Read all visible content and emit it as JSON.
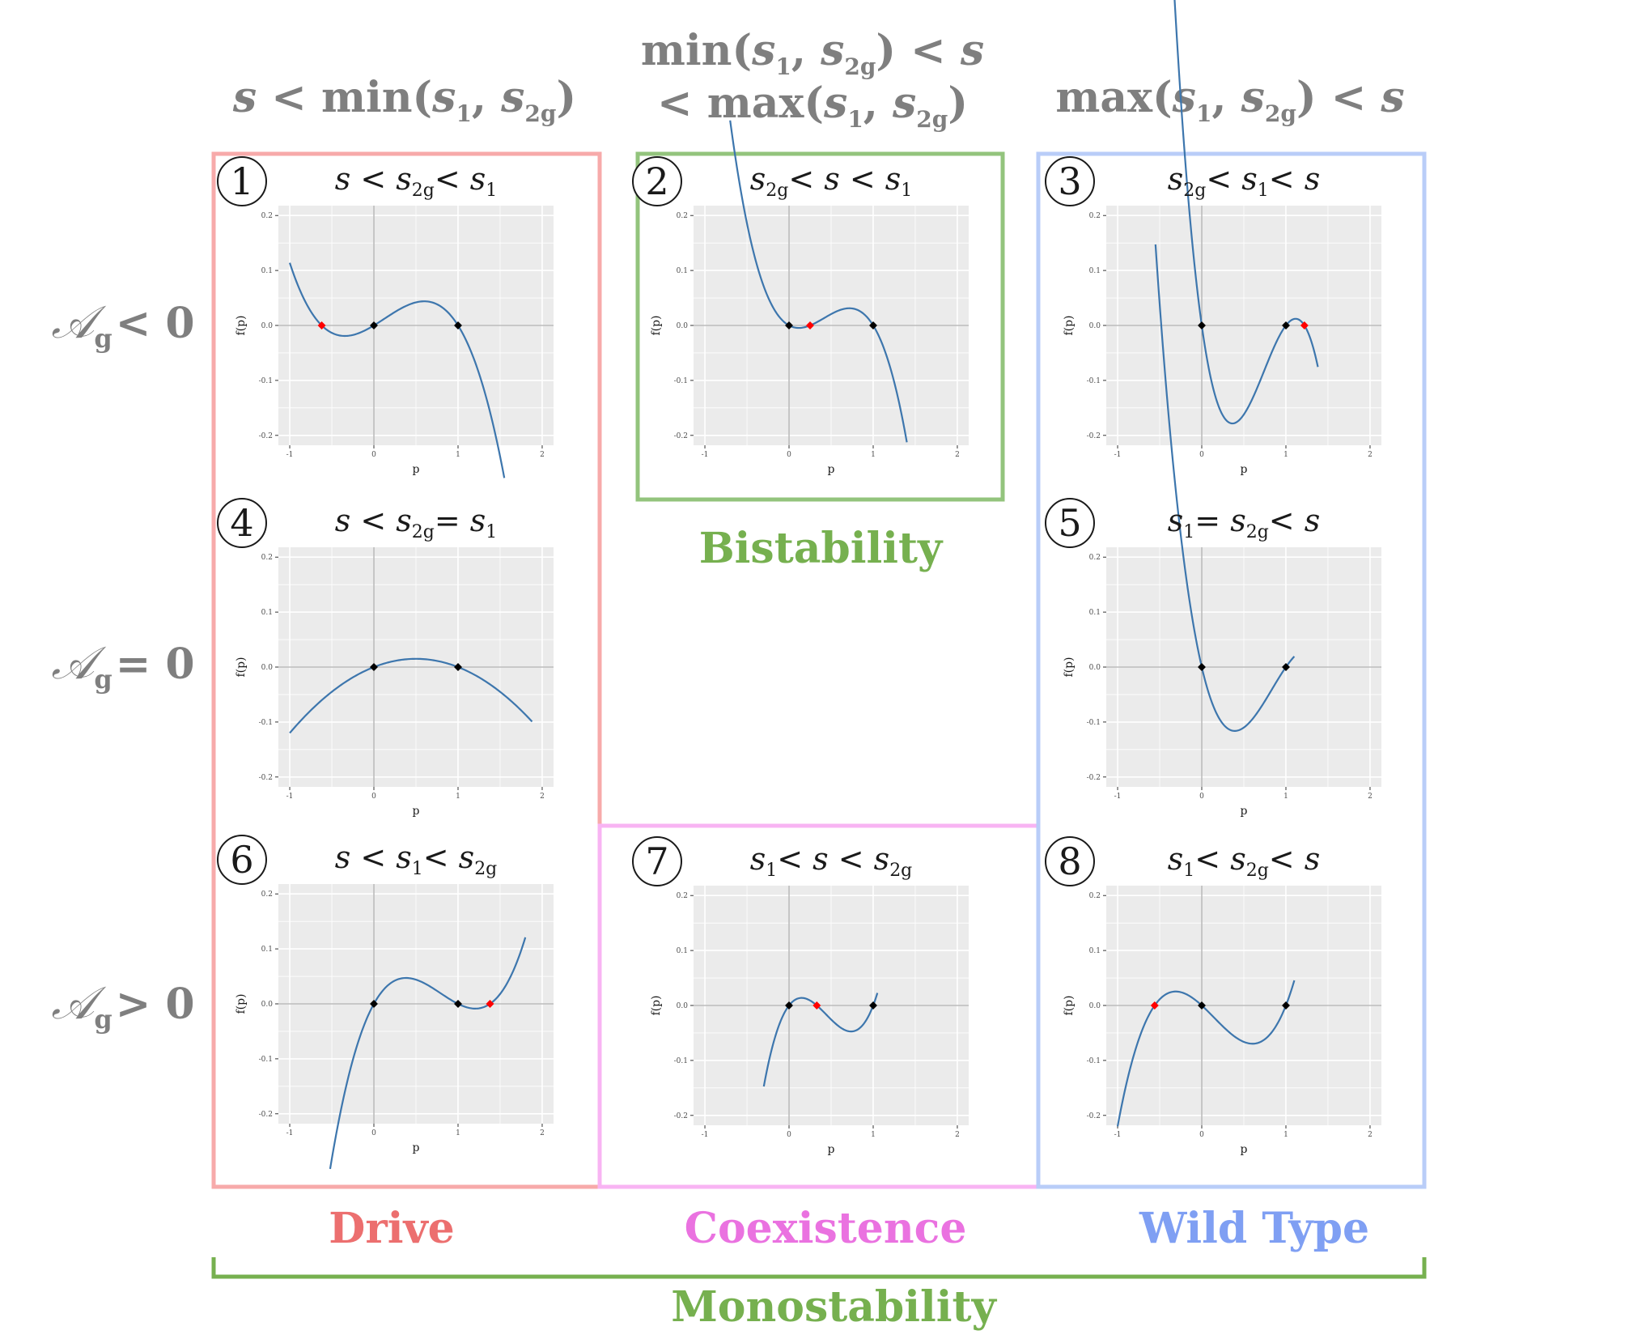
{
  "column_headers": [
    {
      "id": "col1",
      "lines": [
        [
          "s",
          " < min(",
          "s",
          "1",
          ", ",
          "s",
          "2g",
          ")"
        ]
      ]
    },
    {
      "id": "col2",
      "lines": [
        [
          "min(",
          "s",
          "1",
          ", ",
          "s",
          "2g",
          ") < ",
          "s",
          ""
        ],
        [
          "< max(",
          "s",
          "1",
          ", ",
          "s",
          "2g",
          ")"
        ]
      ]
    },
    {
      "id": "col3",
      "lines": [
        [
          "max(",
          "s",
          "1",
          ", ",
          "s",
          "2g",
          ") < ",
          "s",
          ""
        ]
      ]
    }
  ],
  "row_headers": [
    {
      "symbol": "𝒜",
      "sub": "g",
      "rel": "< 0"
    },
    {
      "symbol": "𝒜",
      "sub": "g",
      "rel": "= 0"
    },
    {
      "symbol": "𝒜",
      "sub": "g",
      "rel": "> 0"
    }
  ],
  "region_labels": {
    "bistability": "Bistability",
    "drive": "Drive",
    "coexistence": "Coexistence",
    "wild_type": "Wild Type",
    "monostability": "Monostability"
  },
  "colors": {
    "drive": "#f7aaaa",
    "drive_text": "#ec6f6f",
    "bistability": "#93c47d",
    "bistability_text": "#76b04f",
    "coexistence": "#f8b4f3",
    "coexistence_text": "#ea72e0",
    "wild_type": "#b9cdf8",
    "wild_type_text": "#7f9ff3",
    "monostability": "#76b04f",
    "curve": "#3d76ad",
    "stable_point": "#000000",
    "unstable_point": "#ff0000",
    "plot_bg": "#ebebeb"
  },
  "axis": {
    "x_ticks": [
      "-1",
      "0",
      "1",
      "2"
    ],
    "y_ticks": [
      "0.2",
      "0.1",
      "0.0",
      "-0.1",
      "-0.2"
    ],
    "xlabel": "p",
    "ylabel": "f(p)"
  },
  "chart_data": [
    {
      "type": "line",
      "panel": "1",
      "title": "s < s2g < s1",
      "xlim": [
        -1,
        2
      ],
      "ylim": [
        -0.2,
        0.2
      ],
      "curve": {
        "x0": -1,
        "x1": 1.55,
        "form": "cubic",
        "roots": [
          -0.62,
          0,
          1
        ],
        "k": -0.15
      },
      "points": [
        {
          "x": -0.62,
          "y": 0,
          "stable": false
        },
        {
          "x": 0,
          "y": 0,
          "stable": true
        },
        {
          "x": 1,
          "y": 0,
          "stable": true
        }
      ]
    },
    {
      "type": "line",
      "panel": "2",
      "title": "s2g < s < s1",
      "xlim": [
        -1,
        2
      ],
      "ylim": [
        -0.2,
        0.2
      ],
      "curve": {
        "x0": -0.7,
        "x1": 1.4,
        "form": "cubic",
        "roots": [
          0,
          0.25,
          1
        ],
        "k": -0.33
      },
      "points": [
        {
          "x": 0,
          "y": 0,
          "stable": true
        },
        {
          "x": 0.25,
          "y": 0,
          "stable": false
        },
        {
          "x": 1,
          "y": 0,
          "stable": true
        }
      ]
    },
    {
      "type": "line",
      "panel": "3",
      "title": "s2g < s1 < s",
      "xlim": [
        -1,
        2
      ],
      "ylim": [
        -0.2,
        0.2
      ],
      "curve": {
        "x0": -0.35,
        "x1": 1.38,
        "form": "cubic",
        "roots": [
          0,
          1,
          1.22
        ],
        "k": -0.9
      },
      "points": [
        {
          "x": 0,
          "y": 0,
          "stable": true
        },
        {
          "x": 1,
          "y": 0,
          "stable": true
        },
        {
          "x": 1.22,
          "y": 0,
          "stable": false
        }
      ]
    },
    {
      "type": "line",
      "panel": "4",
      "title": "s < s2g = s1",
      "xlim": [
        -1,
        2
      ],
      "ylim": [
        -0.2,
        0.2
      ],
      "curve": {
        "x0": -1,
        "x1": 1.88,
        "form": "quadratic",
        "roots": [
          0,
          1
        ],
        "k": -0.06
      },
      "points": [
        {
          "x": 0,
          "y": 0,
          "stable": true
        },
        {
          "x": 1,
          "y": 0,
          "stable": true
        }
      ]
    },
    {
      "type": "line",
      "panel": "5",
      "title": "s1 = s2g < s",
      "xlim": [
        -1,
        2
      ],
      "ylim": [
        -0.2,
        0.2
      ],
      "curve": {
        "x0": -0.55,
        "x1": 1.1,
        "form": "cubic",
        "roots": [
          0,
          1,
          1.5
        ],
        "k": -0.44
      },
      "points": [
        {
          "x": 0,
          "y": 0,
          "stable": true
        },
        {
          "x": 1,
          "y": 0,
          "stable": true
        }
      ]
    },
    {
      "type": "line",
      "panel": "6",
      "title": "s < s1 < s2g",
      "xlim": [
        -1,
        2
      ],
      "ylim": [
        -0.2,
        0.2
      ],
      "curve": {
        "x0": -0.52,
        "x1": 1.8,
        "form": "cubic",
        "roots": [
          0,
          1,
          1.38
        ],
        "k": 0.2
      },
      "points": [
        {
          "x": 0,
          "y": 0,
          "stable": true
        },
        {
          "x": 1,
          "y": 0,
          "stable": true
        },
        {
          "x": 1.38,
          "y": 0,
          "stable": false
        }
      ]
    },
    {
      "type": "line",
      "panel": "7",
      "title": "s1 < s < s2g",
      "xlim": [
        -1,
        2
      ],
      "ylim": [
        -0.2,
        0.2
      ],
      "curve": {
        "x0": -0.3,
        "x1": 1.05,
        "form": "cubic",
        "roots": [
          0,
          0.33,
          1
        ],
        "k": 0.6
      },
      "points": [
        {
          "x": 0,
          "y": 0,
          "stable": true
        },
        {
          "x": 0.33,
          "y": 0,
          "stable": false
        },
        {
          "x": 1,
          "y": 0,
          "stable": true
        }
      ]
    },
    {
      "type": "line",
      "panel": "8",
      "title": "s1 < s2g < s",
      "xlim": [
        -1,
        2
      ],
      "ylim": [
        -0.2,
        0.2
      ],
      "curve": {
        "x0": -1,
        "x1": 1.1,
        "form": "cubic",
        "roots": [
          -0.56,
          0,
          1
        ],
        "k": 0.25
      },
      "points": [
        {
          "x": -0.56,
          "y": 0,
          "stable": false
        },
        {
          "x": 0,
          "y": 0,
          "stable": true
        },
        {
          "x": 1,
          "y": 0,
          "stable": true
        }
      ]
    }
  ],
  "panel_titles": {
    "1": [
      [
        "s",
        " < ",
        ""
      ],
      [
        "s",
        "2g",
        "< "
      ],
      [
        "s",
        "1",
        ""
      ]
    ],
    "2": [
      [
        "s",
        "2g",
        "< "
      ],
      [
        "s",
        " < ",
        ""
      ],
      [
        "s",
        "1",
        ""
      ]
    ],
    "3": [
      [
        "s",
        "2g",
        "< "
      ],
      [
        "s",
        "1",
        "< "
      ],
      [
        "s",
        "",
        ""
      ]
    ],
    "4": [
      [
        "s",
        " < ",
        ""
      ],
      [
        "s",
        "2g",
        "= "
      ],
      [
        "s",
        "1",
        ""
      ]
    ],
    "5": [
      [
        "s",
        "1",
        "= "
      ],
      [
        "s",
        "2g",
        "< "
      ],
      [
        "s",
        "",
        ""
      ]
    ],
    "6": [
      [
        "s",
        " < ",
        ""
      ],
      [
        "s",
        "1",
        "< "
      ],
      [
        "s",
        "2g",
        ""
      ]
    ],
    "7": [
      [
        "s",
        "1",
        "< "
      ],
      [
        "s",
        " < ",
        ""
      ],
      [
        "s",
        "2g",
        ""
      ]
    ],
    "8": [
      [
        "s",
        "1",
        "< "
      ],
      [
        "s",
        "2g",
        "< "
      ],
      [
        "s",
        "",
        ""
      ]
    ]
  },
  "panel_numbers": [
    "1",
    "2",
    "3",
    "4",
    "5",
    "6",
    "7",
    "8"
  ]
}
